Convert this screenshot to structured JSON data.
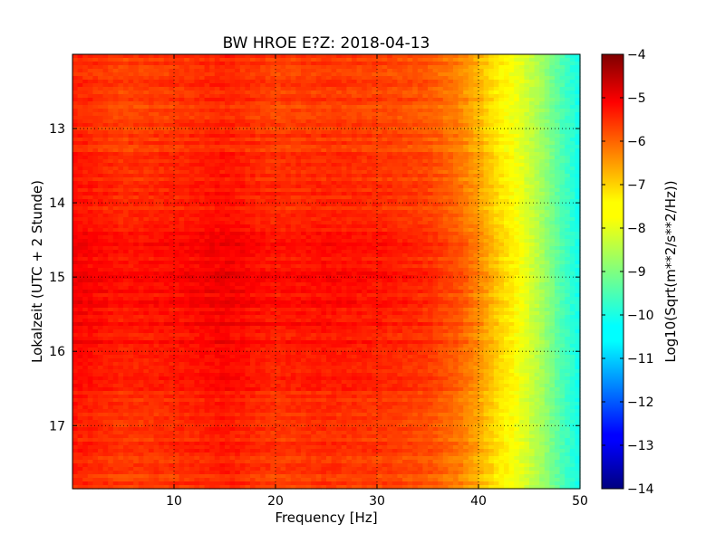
{
  "chart_data": {
    "type": "heatmap",
    "title": "BW HROE E?Z: 2018-04-13",
    "xlabel": "Frequency [Hz]",
    "ylabel": "Lokalzeit (UTC + 2 Stunde)",
    "xlim": [
      0,
      50
    ],
    "ylim": [
      17.85,
      12.0
    ],
    "x_ticks": [
      10,
      20,
      30,
      40,
      50
    ],
    "y_ticks": [
      13,
      14,
      15,
      16,
      17
    ],
    "grid": true,
    "colormap": "jet",
    "colorbar": {
      "label": "Log10(Sqrt(m**2/s**2/Hz))",
      "range": [
        -14,
        -4
      ],
      "ticks": [
        -4,
        -5,
        -6,
        -7,
        -8,
        -9,
        -10,
        -11,
        -12,
        -13,
        -14
      ]
    },
    "frequency_profile_hz": [
      0,
      5,
      10,
      15,
      20,
      25,
      30,
      35,
      38,
      40,
      42,
      44,
      46,
      48,
      50
    ],
    "frequency_profile_level": [
      -5.6,
      -5.9,
      -5.8,
      -5.6,
      -5.9,
      -5.8,
      -5.9,
      -6.1,
      -6.5,
      -7.0,
      -7.6,
      -8.0,
      -8.6,
      -9.4,
      -10.1
    ],
    "time_profile_hour": [
      12.0,
      13.0,
      13.6,
      14.3,
      14.5,
      15.0,
      15.5,
      16.0,
      16.5,
      17.0,
      17.85
    ],
    "time_profile_offset": [
      0.0,
      0.0,
      0.15,
      0.25,
      0.45,
      0.5,
      0.45,
      0.4,
      0.3,
      0.1,
      0.0
    ]
  }
}
